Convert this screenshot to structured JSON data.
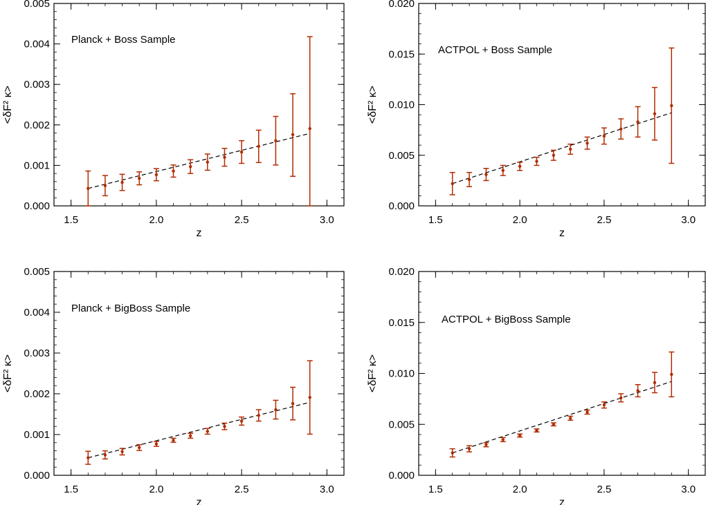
{
  "figure": {
    "description_free": true
  },
  "style": {
    "data_color": "#b22a00",
    "model_color": "#000000",
    "axis_color": "#000000"
  },
  "chart_data": [
    {
      "type": "scatter",
      "title": "Planck + Boss Sample",
      "xlabel": "z",
      "ylabel": "<δF² κ>",
      "xlim": [
        1.4,
        3.1
      ],
      "ylim": [
        0.0,
        0.005
      ],
      "xticks": [
        1.5,
        2.0,
        2.5,
        3.0
      ],
      "xtick_labels": [
        "1.5",
        "2.0",
        "2.5",
        "3.0"
      ],
      "yticks": [
        0.0,
        0.001,
        0.002,
        0.003,
        0.004,
        0.005
      ],
      "ytick_labels": [
        "0.000",
        "0.001",
        "0.002",
        "0.003",
        "0.004",
        "0.005"
      ],
      "x": [
        1.6,
        1.7,
        1.8,
        1.9,
        2.0,
        2.1,
        2.2,
        2.3,
        2.4,
        2.5,
        2.6,
        2.7,
        2.8,
        2.9
      ],
      "y": [
        0.00043,
        0.0005,
        0.00058,
        0.00068,
        0.00077,
        0.00086,
        0.00097,
        0.00108,
        0.0012,
        0.00133,
        0.00147,
        0.00161,
        0.00176,
        0.00191
      ],
      "yerr_low": [
        0.00043,
        0.00025,
        0.0002,
        0.00016,
        0.00015,
        0.00015,
        0.00017,
        0.0002,
        0.00022,
        0.00028,
        0.0004,
        0.0006,
        0.00103,
        0.00191
      ],
      "yerr_high": [
        0.00043,
        0.00025,
        0.0002,
        0.00016,
        0.00015,
        0.00015,
        0.00017,
        0.0002,
        0.00022,
        0.00028,
        0.0004,
        0.0006,
        0.00101,
        0.00227
      ],
      "model_x": [
        1.6,
        2.9
      ],
      "model_y": [
        0.00043,
        0.00179
      ]
    },
    {
      "type": "scatter",
      "title": "ACTPOL + Boss Sample",
      "xlabel": "z",
      "ylabel": "<δF² κ>",
      "xlim": [
        1.4,
        3.1
      ],
      "ylim": [
        0.0,
        0.02
      ],
      "xticks": [
        1.5,
        2.0,
        2.5,
        3.0
      ],
      "xtick_labels": [
        "1.5",
        "2.0",
        "2.5",
        "3.0"
      ],
      "yticks": [
        0.0,
        0.005,
        0.01,
        0.015,
        0.02
      ],
      "ytick_labels": [
        "0.000",
        "0.005",
        "0.010",
        "0.015",
        "0.020"
      ],
      "x": [
        1.6,
        1.7,
        1.8,
        1.9,
        2.0,
        2.1,
        2.2,
        2.3,
        2.4,
        2.5,
        2.6,
        2.7,
        2.8,
        2.9
      ],
      "y": [
        0.0022,
        0.0026,
        0.0031,
        0.0035,
        0.0039,
        0.0044,
        0.005,
        0.0056,
        0.0062,
        0.0069,
        0.0076,
        0.0083,
        0.0091,
        0.0099
      ],
      "yerr_low": [
        0.0011,
        0.0007,
        0.0006,
        0.0005,
        0.0004,
        0.0004,
        0.0005,
        0.0005,
        0.0006,
        0.0008,
        0.001,
        0.0015,
        0.0026,
        0.0057
      ],
      "yerr_high": [
        0.0011,
        0.0007,
        0.0006,
        0.0005,
        0.0004,
        0.0004,
        0.0005,
        0.0005,
        0.0006,
        0.0008,
        0.001,
        0.0015,
        0.0026,
        0.0057
      ],
      "model_x": [
        1.6,
        2.9
      ],
      "model_y": [
        0.0022,
        0.0092
      ]
    },
    {
      "type": "scatter",
      "title": "Planck + BigBoss Sample",
      "xlabel": "z",
      "ylabel": "<δF² κ>",
      "xlim": [
        1.4,
        3.1
      ],
      "ylim": [
        0.0,
        0.005
      ],
      "xticks": [
        1.5,
        2.0,
        2.5,
        3.0
      ],
      "xtick_labels": [
        "1.5",
        "2.0",
        "2.5",
        "3.0"
      ],
      "yticks": [
        0.0,
        0.001,
        0.002,
        0.003,
        0.004,
        0.005
      ],
      "ytick_labels": [
        "0.000",
        "0.001",
        "0.002",
        "0.003",
        "0.004",
        "0.005"
      ],
      "x": [
        1.6,
        1.7,
        1.8,
        1.9,
        2.0,
        2.1,
        2.2,
        2.3,
        2.4,
        2.5,
        2.6,
        2.7,
        2.8,
        2.9
      ],
      "y": [
        0.00043,
        0.0005,
        0.00058,
        0.00068,
        0.00077,
        0.00086,
        0.00097,
        0.00108,
        0.0012,
        0.00133,
        0.00147,
        0.00161,
        0.00176,
        0.00191
      ],
      "yerr_low": [
        0.00016,
        0.0001,
        8e-05,
        7e-05,
        6e-05,
        5e-05,
        6e-05,
        7e-05,
        8e-05,
        0.0001,
        0.00014,
        0.00023,
        0.0004,
        0.0009
      ],
      "yerr_high": [
        0.00016,
        0.0001,
        8e-05,
        7e-05,
        6e-05,
        5e-05,
        6e-05,
        7e-05,
        8e-05,
        0.0001,
        0.00014,
        0.00023,
        0.0004,
        0.0009
      ],
      "model_x": [
        1.6,
        2.9
      ],
      "model_y": [
        0.00043,
        0.00179
      ]
    },
    {
      "type": "scatter",
      "title": "ACTPOL + BigBoss Sample",
      "xlabel": "z",
      "ylabel": "<δF² κ>",
      "xlim": [
        1.4,
        3.1
      ],
      "ylim": [
        0.0,
        0.02
      ],
      "xticks": [
        1.5,
        2.0,
        2.5,
        3.0
      ],
      "xtick_labels": [
        "1.5",
        "2.0",
        "2.5",
        "3.0"
      ],
      "yticks": [
        0.0,
        0.005,
        0.01,
        0.015,
        0.02
      ],
      "ytick_labels": [
        "0.000",
        "0.005",
        "0.010",
        "0.015",
        "0.020"
      ],
      "x": [
        1.6,
        1.7,
        1.8,
        1.9,
        2.0,
        2.1,
        2.2,
        2.3,
        2.4,
        2.5,
        2.6,
        2.7,
        2.8,
        2.9
      ],
      "y": [
        0.0022,
        0.0026,
        0.003,
        0.0035,
        0.0039,
        0.0044,
        0.005,
        0.0056,
        0.0062,
        0.0069,
        0.0076,
        0.0083,
        0.0091,
        0.0099
      ],
      "yerr_low": [
        0.0004,
        0.0003,
        0.0002,
        0.0002,
        0.00015,
        0.00015,
        0.00015,
        0.0002,
        0.0002,
        0.0003,
        0.0004,
        0.0006,
        0.001,
        0.0022
      ],
      "yerr_high": [
        0.0004,
        0.0003,
        0.0002,
        0.0002,
        0.00015,
        0.00015,
        0.00015,
        0.0002,
        0.0002,
        0.0003,
        0.0004,
        0.0006,
        0.001,
        0.0022
      ],
      "model_x": [
        1.6,
        2.9
      ],
      "model_y": [
        0.0022,
        0.0092
      ]
    }
  ]
}
